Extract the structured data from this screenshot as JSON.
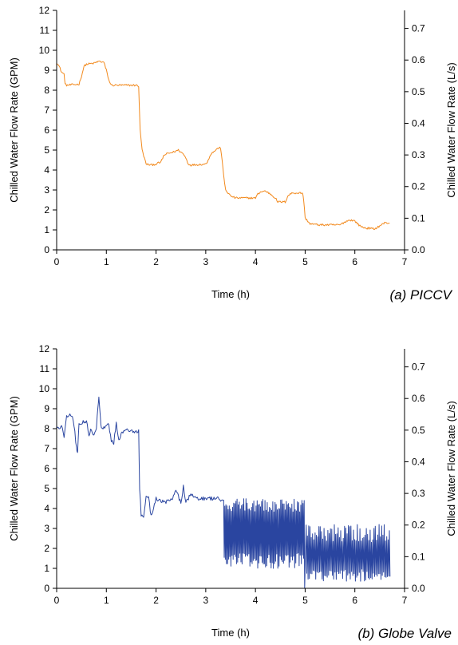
{
  "chart_data": [
    {
      "type": "line",
      "caption": "(a) PICCV",
      "xlabel": "Time (h)",
      "ylabel": "Chilled Water Flow Rate (GPM)",
      "ylabel_right": "Chilled Water Flow Rate (L/s)",
      "xlim": [
        0,
        7
      ],
      "ylim": [
        0,
        12
      ],
      "ylim_right": [
        0,
        0.757
      ],
      "x_ticks": [
        "0",
        "1",
        "2",
        "3",
        "4",
        "5",
        "6",
        "7"
      ],
      "y_ticks": [
        "0",
        "1",
        "2",
        "3",
        "4",
        "5",
        "6",
        "7",
        "8",
        "9",
        "10",
        "11",
        "12"
      ],
      "y_ticks_right": [
        "0.0",
        "0.1",
        "0.2",
        "0.3",
        "0.4",
        "0.5",
        "0.6",
        "0.7"
      ],
      "color": "#f28a1e",
      "series": [
        {
          "noise": 0.05,
          "x": [
            0.0,
            0.05,
            0.1,
            0.15,
            0.17,
            0.2,
            0.45,
            0.5,
            0.55,
            0.6,
            0.75,
            0.85,
            0.95,
            1.0,
            1.05,
            1.1,
            1.6,
            1.65,
            1.68,
            1.72,
            1.8,
            1.9,
            2.0,
            2.1,
            2.15,
            2.2,
            2.35,
            2.45,
            2.55,
            2.6,
            2.65,
            2.7,
            3.0,
            3.05,
            3.1,
            3.15,
            3.2,
            3.25,
            3.3,
            3.33,
            3.36,
            3.4,
            3.5,
            3.6,
            4.0,
            4.05,
            4.1,
            4.2,
            4.3,
            4.4,
            4.45,
            4.6,
            4.65,
            4.7,
            4.75,
            4.95,
            4.97,
            5.0,
            5.1,
            5.3,
            5.5,
            5.7,
            5.8,
            5.9,
            6.0,
            6.1,
            6.2,
            6.4,
            6.5,
            6.6,
            6.7
          ],
          "y": [
            9.4,
            9.2,
            8.9,
            8.8,
            8.3,
            8.25,
            8.3,
            8.7,
            9.2,
            9.3,
            9.35,
            9.45,
            9.4,
            9.0,
            8.5,
            8.25,
            8.25,
            8.2,
            6.0,
            5.0,
            4.3,
            4.25,
            4.3,
            4.4,
            4.7,
            4.8,
            4.9,
            5.0,
            4.8,
            4.6,
            4.3,
            4.25,
            4.3,
            4.5,
            4.8,
            4.9,
            5.0,
            5.1,
            5.1,
            4.5,
            3.7,
            3.0,
            2.7,
            2.6,
            2.6,
            2.8,
            2.9,
            2.95,
            2.8,
            2.6,
            2.4,
            2.4,
            2.7,
            2.8,
            2.85,
            2.85,
            2.5,
            1.6,
            1.3,
            1.25,
            1.25,
            1.25,
            1.4,
            1.5,
            1.45,
            1.2,
            1.1,
            1.05,
            1.2,
            1.35,
            1.35
          ]
        }
      ]
    },
    {
      "type": "line",
      "caption": "(b) Globe Valve",
      "xlabel": "Time (h)",
      "ylabel": "Chilled Water Flow Rate (GPM)",
      "ylabel_right": "Chilled Water Flow Rate (L/s)",
      "xlim": [
        0,
        7
      ],
      "ylim": [
        0,
        12
      ],
      "ylim_right": [
        0,
        0.757
      ],
      "x_ticks": [
        "0",
        "1",
        "2",
        "3",
        "4",
        "5",
        "6",
        "7"
      ],
      "y_ticks": [
        "0",
        "1",
        "2",
        "3",
        "4",
        "5",
        "6",
        "7",
        "8",
        "9",
        "10",
        "11",
        "12"
      ],
      "y_ticks_right": [
        "0.0",
        "0.1",
        "0.2",
        "0.3",
        "0.4",
        "0.5",
        "0.6",
        "0.7"
      ],
      "color": "#2a45a0",
      "series": [
        {
          "noise": 0.1,
          "x": [
            0.0,
            0.1,
            0.15,
            0.2,
            0.3,
            0.35,
            0.4,
            0.42,
            0.45,
            0.5,
            0.6,
            0.65,
            0.7,
            0.75,
            0.8,
            0.83,
            0.85,
            0.88,
            0.9,
            1.0,
            1.05,
            1.1,
            1.15,
            1.2,
            1.25,
            1.3,
            1.4,
            1.6,
            1.65,
            1.67,
            1.7,
            1.75,
            1.8,
            1.85,
            1.9,
            2.0,
            2.1,
            2.15,
            2.3,
            2.4,
            2.5,
            2.55,
            2.6,
            2.7,
            2.8,
            3.0,
            3.2,
            3.3,
            3.35
          ],
          "y": [
            8.0,
            8.1,
            7.6,
            8.6,
            8.7,
            8.2,
            7.0,
            6.8,
            8.2,
            8.3,
            8.4,
            7.7,
            8.0,
            7.6,
            8.1,
            9.0,
            9.5,
            8.6,
            8.0,
            8.1,
            8.2,
            7.4,
            7.3,
            8.3,
            7.4,
            7.8,
            7.9,
            7.85,
            7.85,
            5.0,
            3.6,
            3.6,
            4.7,
            4.6,
            3.6,
            4.5,
            4.4,
            4.3,
            4.4,
            4.9,
            4.3,
            5.1,
            4.3,
            4.7,
            4.5,
            4.5,
            4.5,
            4.45,
            4.4
          ]
        }
      ],
      "oscillation": [
        {
          "x_start": 3.36,
          "x_end": 4.98,
          "cycles": 72,
          "y_low": [
            1.0,
            1.8
          ],
          "y_high": [
            3.8,
            4.5
          ]
        },
        {
          "x_start": 5.02,
          "x_end": 6.72,
          "cycles": 66,
          "y_low": [
            0.35,
            1.0
          ],
          "y_high": [
            2.3,
            3.2
          ]
        }
      ]
    }
  ]
}
